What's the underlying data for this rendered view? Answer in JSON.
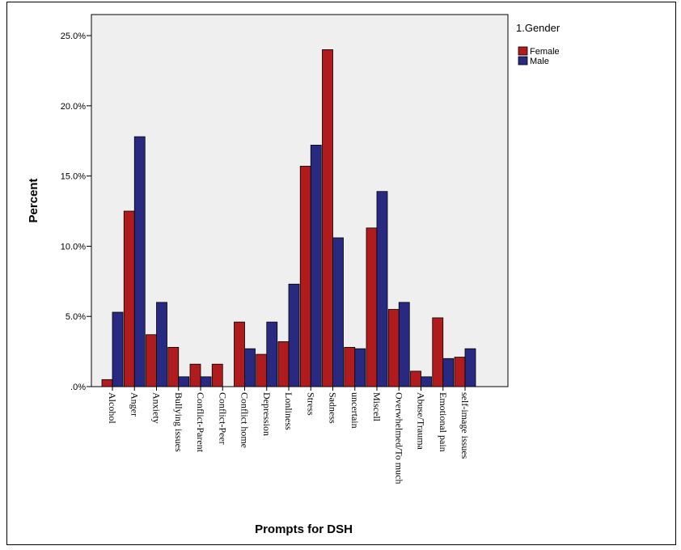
{
  "chart_data": {
    "type": "bar",
    "title": "",
    "xlabel": "Prompts for DSH",
    "ylabel": "Percent",
    "ylim": [
      0,
      26.5
    ],
    "yticks": [
      ".0%",
      "5.0%",
      "10.0%",
      "15.0%",
      "20.0%",
      "25.0%"
    ],
    "ytick_values": [
      0,
      5,
      10,
      15,
      20,
      25
    ],
    "grid": false,
    "legend": {
      "title": "1.Gender",
      "placement": "right"
    },
    "categories": [
      "Alcohol",
      "Anger",
      "Anxiety",
      "Bullying issues",
      "Conflict-Parent",
      "Conflict-Peer",
      "Conflict home",
      "Depression",
      "Lonliness",
      "Stress",
      "Sadness",
      "uncertain",
      "Miscell",
      "Overwhelmed/To much",
      "Abuse/Trauma",
      "Emotional pain",
      "self-image issues"
    ],
    "series": [
      {
        "name": "Female",
        "color": "#b01c1e",
        "values": [
          0.5,
          12.5,
          3.7,
          2.8,
          1.6,
          1.6,
          4.6,
          2.3,
          3.2,
          15.7,
          24.0,
          2.8,
          11.3,
          5.5,
          1.1,
          4.9,
          2.1
        ]
      },
      {
        "name": "Male",
        "color": "#282a82",
        "values": [
          5.3,
          17.8,
          6.0,
          0.7,
          0.7,
          0.0,
          2.7,
          4.6,
          7.3,
          17.2,
          10.6,
          2.7,
          13.9,
          6.0,
          0.7,
          2.0,
          2.7
        ]
      }
    ],
    "colors": {
      "plot_background": "#efefef",
      "border": "#000000"
    }
  }
}
